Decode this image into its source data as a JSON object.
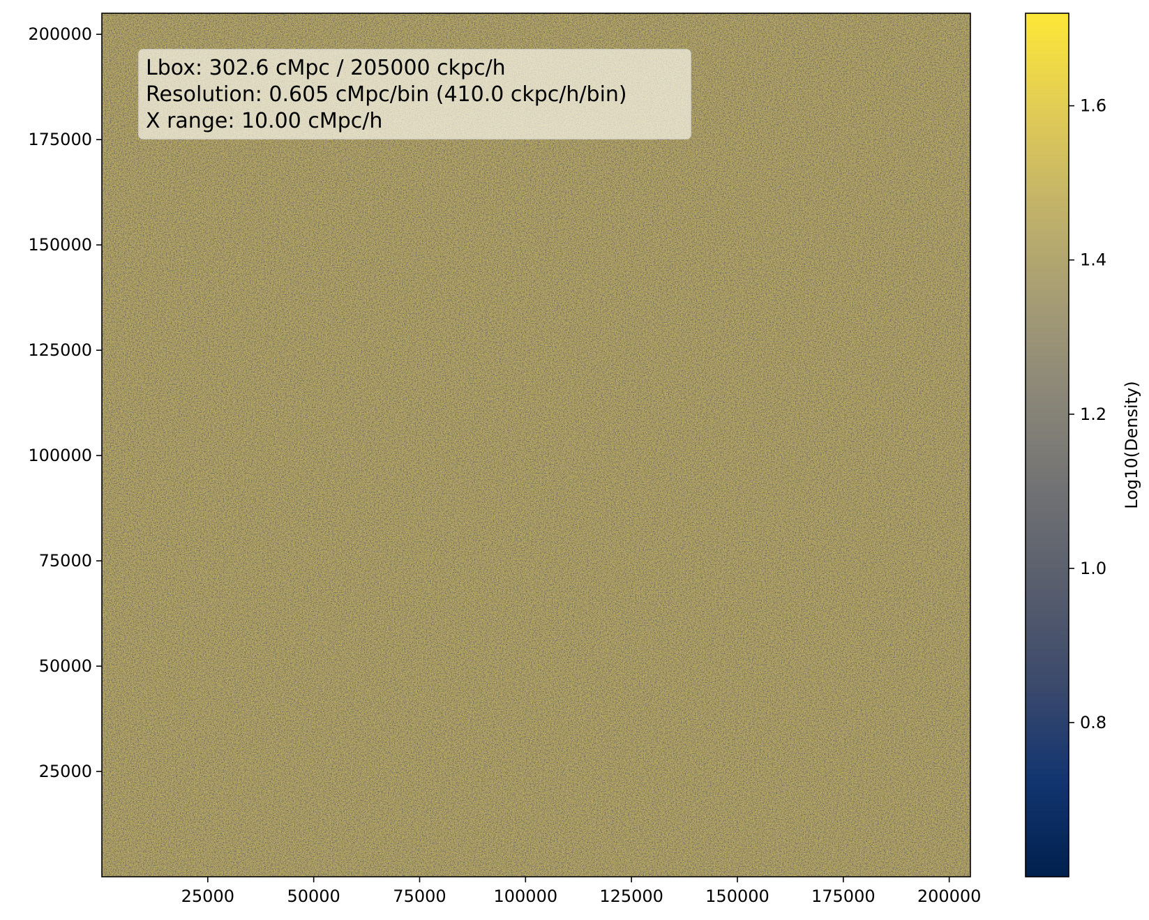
{
  "chart_data": {
    "type": "heatmap",
    "title": "",
    "xlabel": "",
    "ylabel": "",
    "xlim": [
      0,
      205000
    ],
    "ylim": [
      0,
      205000
    ],
    "x_ticks": [
      "25000",
      "50000",
      "75000",
      "100000",
      "125000",
      "150000",
      "175000",
      "200000"
    ],
    "x_tick_values": [
      25000,
      50000,
      75000,
      100000,
      125000,
      150000,
      175000,
      200000
    ],
    "y_ticks": [
      "25000",
      "50000",
      "75000",
      "100000",
      "125000",
      "150000",
      "175000",
      "200000"
    ],
    "y_tick_values": [
      25000,
      50000,
      75000,
      100000,
      125000,
      150000,
      175000,
      200000
    ],
    "colorbar": {
      "label": "Log10(Density)",
      "range": [
        0.6,
        1.72
      ],
      "ticks": [
        "0.8",
        "1.0",
        "1.2",
        "1.4",
        "1.6"
      ],
      "tick_values": [
        0.8,
        1.0,
        1.2,
        1.4,
        1.6
      ],
      "colormap": "cividis",
      "colormap_stops": [
        "#00204d",
        "#123570",
        "#3b496c",
        "#575d6d",
        "#707173",
        "#8a8678",
        "#a59c74",
        "#c3b369",
        "#e1cc55",
        "#fde737"
      ]
    },
    "field": {
      "typical_value": 1.4,
      "min_value": 0.6,
      "max_value": 1.72,
      "description_values": "uniform noisy density field centered near 1.35-1.45"
    },
    "annotation_lines": [
      "Lbox: 302.6 cMpc / 205000 ckpc/h",
      "Resolution: 0.605 cMpc/bin (410.0 ckpc/h/bin)",
      "X range: 10.00 cMpc/h"
    ],
    "grid": false,
    "legend": "none"
  }
}
